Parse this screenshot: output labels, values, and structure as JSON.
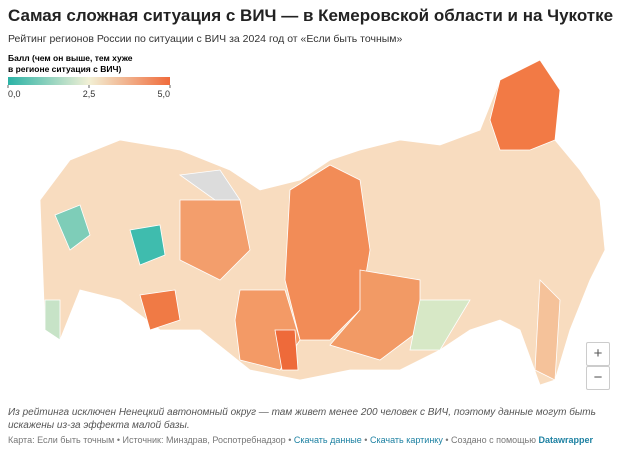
{
  "header": {
    "title": "Самая сложная ситуация с ВИЧ — в Кемеровской области и на Чукотке",
    "subtitle": "Рейтинг регионов России по ситуации с ВИЧ за 2024 год от «Если быть точным»"
  },
  "legend": {
    "title_lines": [
      "Балл (чем он выше, тем хуже",
      "в регионе ситуация с ВИЧ)"
    ],
    "lim": [
      0,
      5
    ],
    "ticks": [
      {
        "value": 0,
        "label": "0,0"
      },
      {
        "value": 2.5,
        "label": "2,5"
      },
      {
        "value": 5,
        "label": "5,0"
      }
    ],
    "colors": [
      "#2bb3a6",
      "#f2f0d5",
      "#f06b3b"
    ]
  },
  "controls": {
    "zoom_in": "+",
    "zoom_out": "−"
  },
  "note": "Из рейтинга исключен Ненецкий автономный округ — там живет менее 200 человек с ВИЧ, поэтому данные могут быть искажены из-за эффекта малой базы.",
  "footer": {
    "credit": "Карта: Если быть точным",
    "source": "Источник: Минздрав, Роспотребнадзор",
    "separator": "•",
    "links": [
      "Скачать данные",
      "Скачать картинку"
    ],
    "made_with": "Создано с помощью",
    "tool": "Datawrapper"
  }
}
